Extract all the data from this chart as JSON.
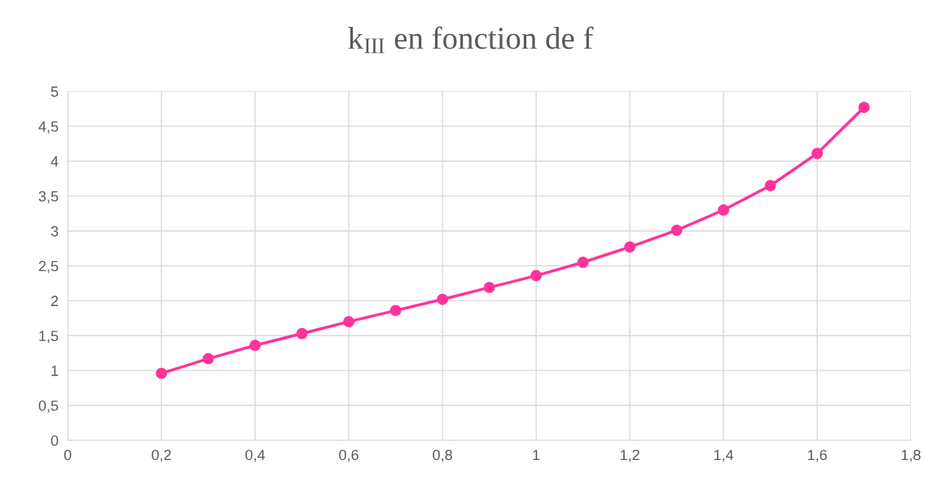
{
  "chart_data": {
    "type": "line",
    "title": "k$_{III}$ en fonction de f",
    "x": [
      0.2,
      0.3,
      0.4,
      0.5,
      0.6,
      0.7,
      0.8,
      0.9,
      1.0,
      1.1,
      1.2,
      1.3,
      1.4,
      1.5,
      1.6,
      1.7
    ],
    "series": [
      {
        "color": "#ff3399",
        "values": [
          0.96,
          1.17,
          1.36,
          1.53,
          1.7,
          1.86,
          2.02,
          2.19,
          2.36,
          2.55,
          2.77,
          3.01,
          3.3,
          3.65,
          4.11,
          4.77
        ]
      }
    ],
    "xlim": [
      0,
      1.8
    ],
    "xticks": [
      0,
      {
        "value": 0.2,
        "label": "0,2"
      },
      {
        "value": 0.4,
        "label": "0,4"
      },
      {
        "value": 0.6,
        "label": "0,6"
      },
      {
        "value": 0.8,
        "label": "0,8"
      },
      1,
      {
        "value": 1.2,
        "label": "1,2"
      },
      {
        "value": 1.4,
        "label": "1,4"
      },
      {
        "value": 1.6,
        "label": "1,6"
      },
      {
        "value": 1.8,
        "label": "1,8"
      }
    ],
    "ylim": [
      0,
      5
    ],
    "yticks": [
      0,
      {
        "value": 0.5,
        "label": "0,5"
      },
      1,
      {
        "value": 1.5,
        "label": "1,5"
      },
      2,
      {
        "value": 2.5,
        "label": "2,5"
      },
      3,
      {
        "value": 3.5,
        "label": "3,5"
      },
      4,
      {
        "value": 4.5,
        "label": "4,5"
      },
      5
    ],
    "grid": true,
    "marker": "circle",
    "line_style": "solid"
  }
}
